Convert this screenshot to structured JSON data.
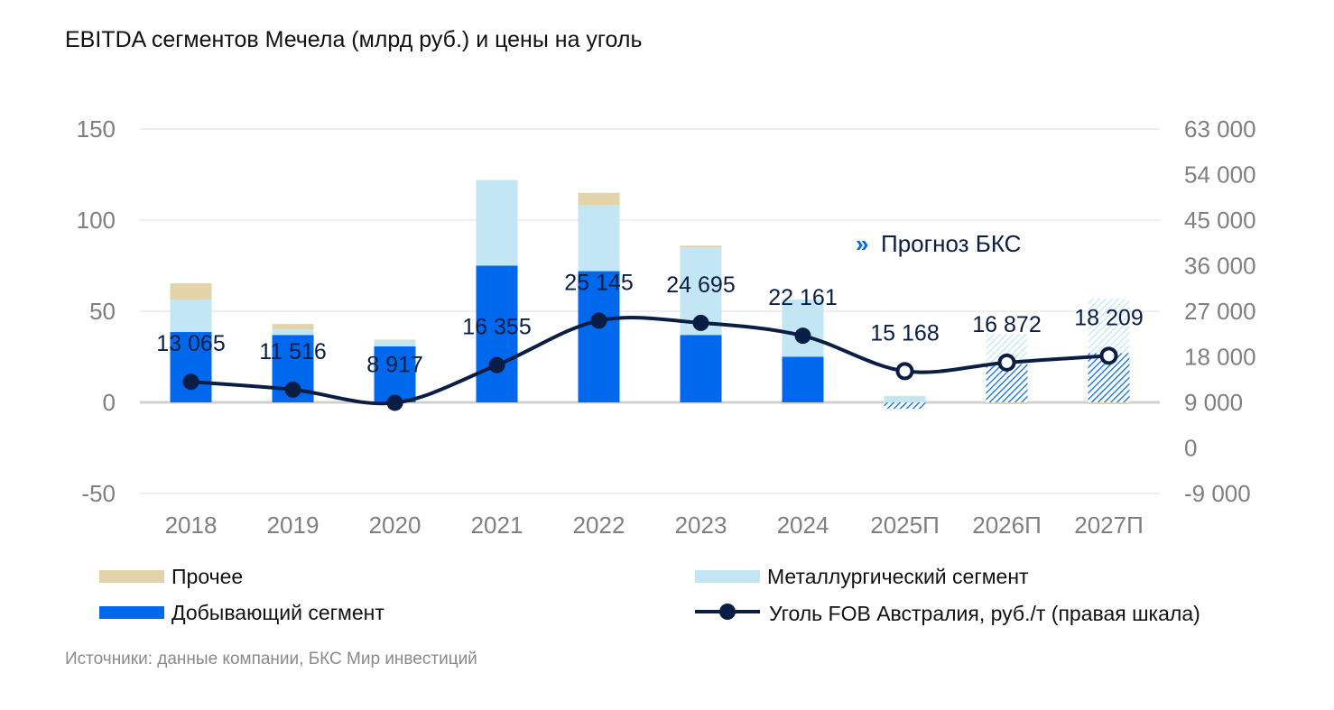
{
  "chart_data": {
    "type": "bar",
    "title": "EBITDA сегментов Мечела (млрд руб.) и цены на уголь",
    "categories": [
      "2018",
      "2019",
      "2020",
      "2021",
      "2022",
      "2023",
      "2024",
      "2025П",
      "2026П",
      "2027П"
    ],
    "forecast_from_index": 7,
    "ylim": [
      -50,
      150
    ],
    "yticks": [
      -50,
      0,
      50,
      100,
      150
    ],
    "y2lim": [
      -9000,
      63000
    ],
    "y2ticks": [
      "-9 000",
      "0",
      "9 000",
      "18 000",
      "27 000",
      "36 000",
      "45 000",
      "54 000",
      "63 000"
    ],
    "grid": true,
    "legend_position": "bottom",
    "series": [
      {
        "name": "Добывающий сегмент",
        "type": "bar",
        "color": "#0068ec",
        "values": [
          38.6,
          37,
          30.7,
          75,
          72,
          37,
          25,
          -3.5,
          21,
          27
        ]
      },
      {
        "name": "Металлургический сегмент",
        "type": "bar",
        "color": "#c2e6f4",
        "values": [
          17.8,
          3,
          3.3,
          47,
          36,
          48,
          31.4,
          3.5,
          16.6,
          30
        ]
      },
      {
        "name": "Прочее",
        "type": "bar",
        "color": "#e3d3ab",
        "values": [
          8.9,
          3,
          0.4,
          0,
          7,
          1,
          -1,
          0,
          -1,
          -1
        ]
      },
      {
        "name": "Уголь FOB Австралия, руб./т (правая шкала)",
        "type": "line",
        "axis": "right",
        "color": "#0a1e45",
        "values": [
          13065,
          11516,
          8917,
          16355,
          25145,
          24695,
          22161,
          15168,
          16872,
          18209
        ],
        "labels": [
          "13 065",
          "11 516",
          "8 917",
          "16 355",
          "25 145",
          "24 695",
          "22 161",
          "15 168",
          "16 872",
          "18 209"
        ]
      }
    ],
    "annotation": "Прогноз БКС",
    "annotation_marker": "»"
  },
  "source": "Источники: данные компании, БКС Мир инвестиций"
}
